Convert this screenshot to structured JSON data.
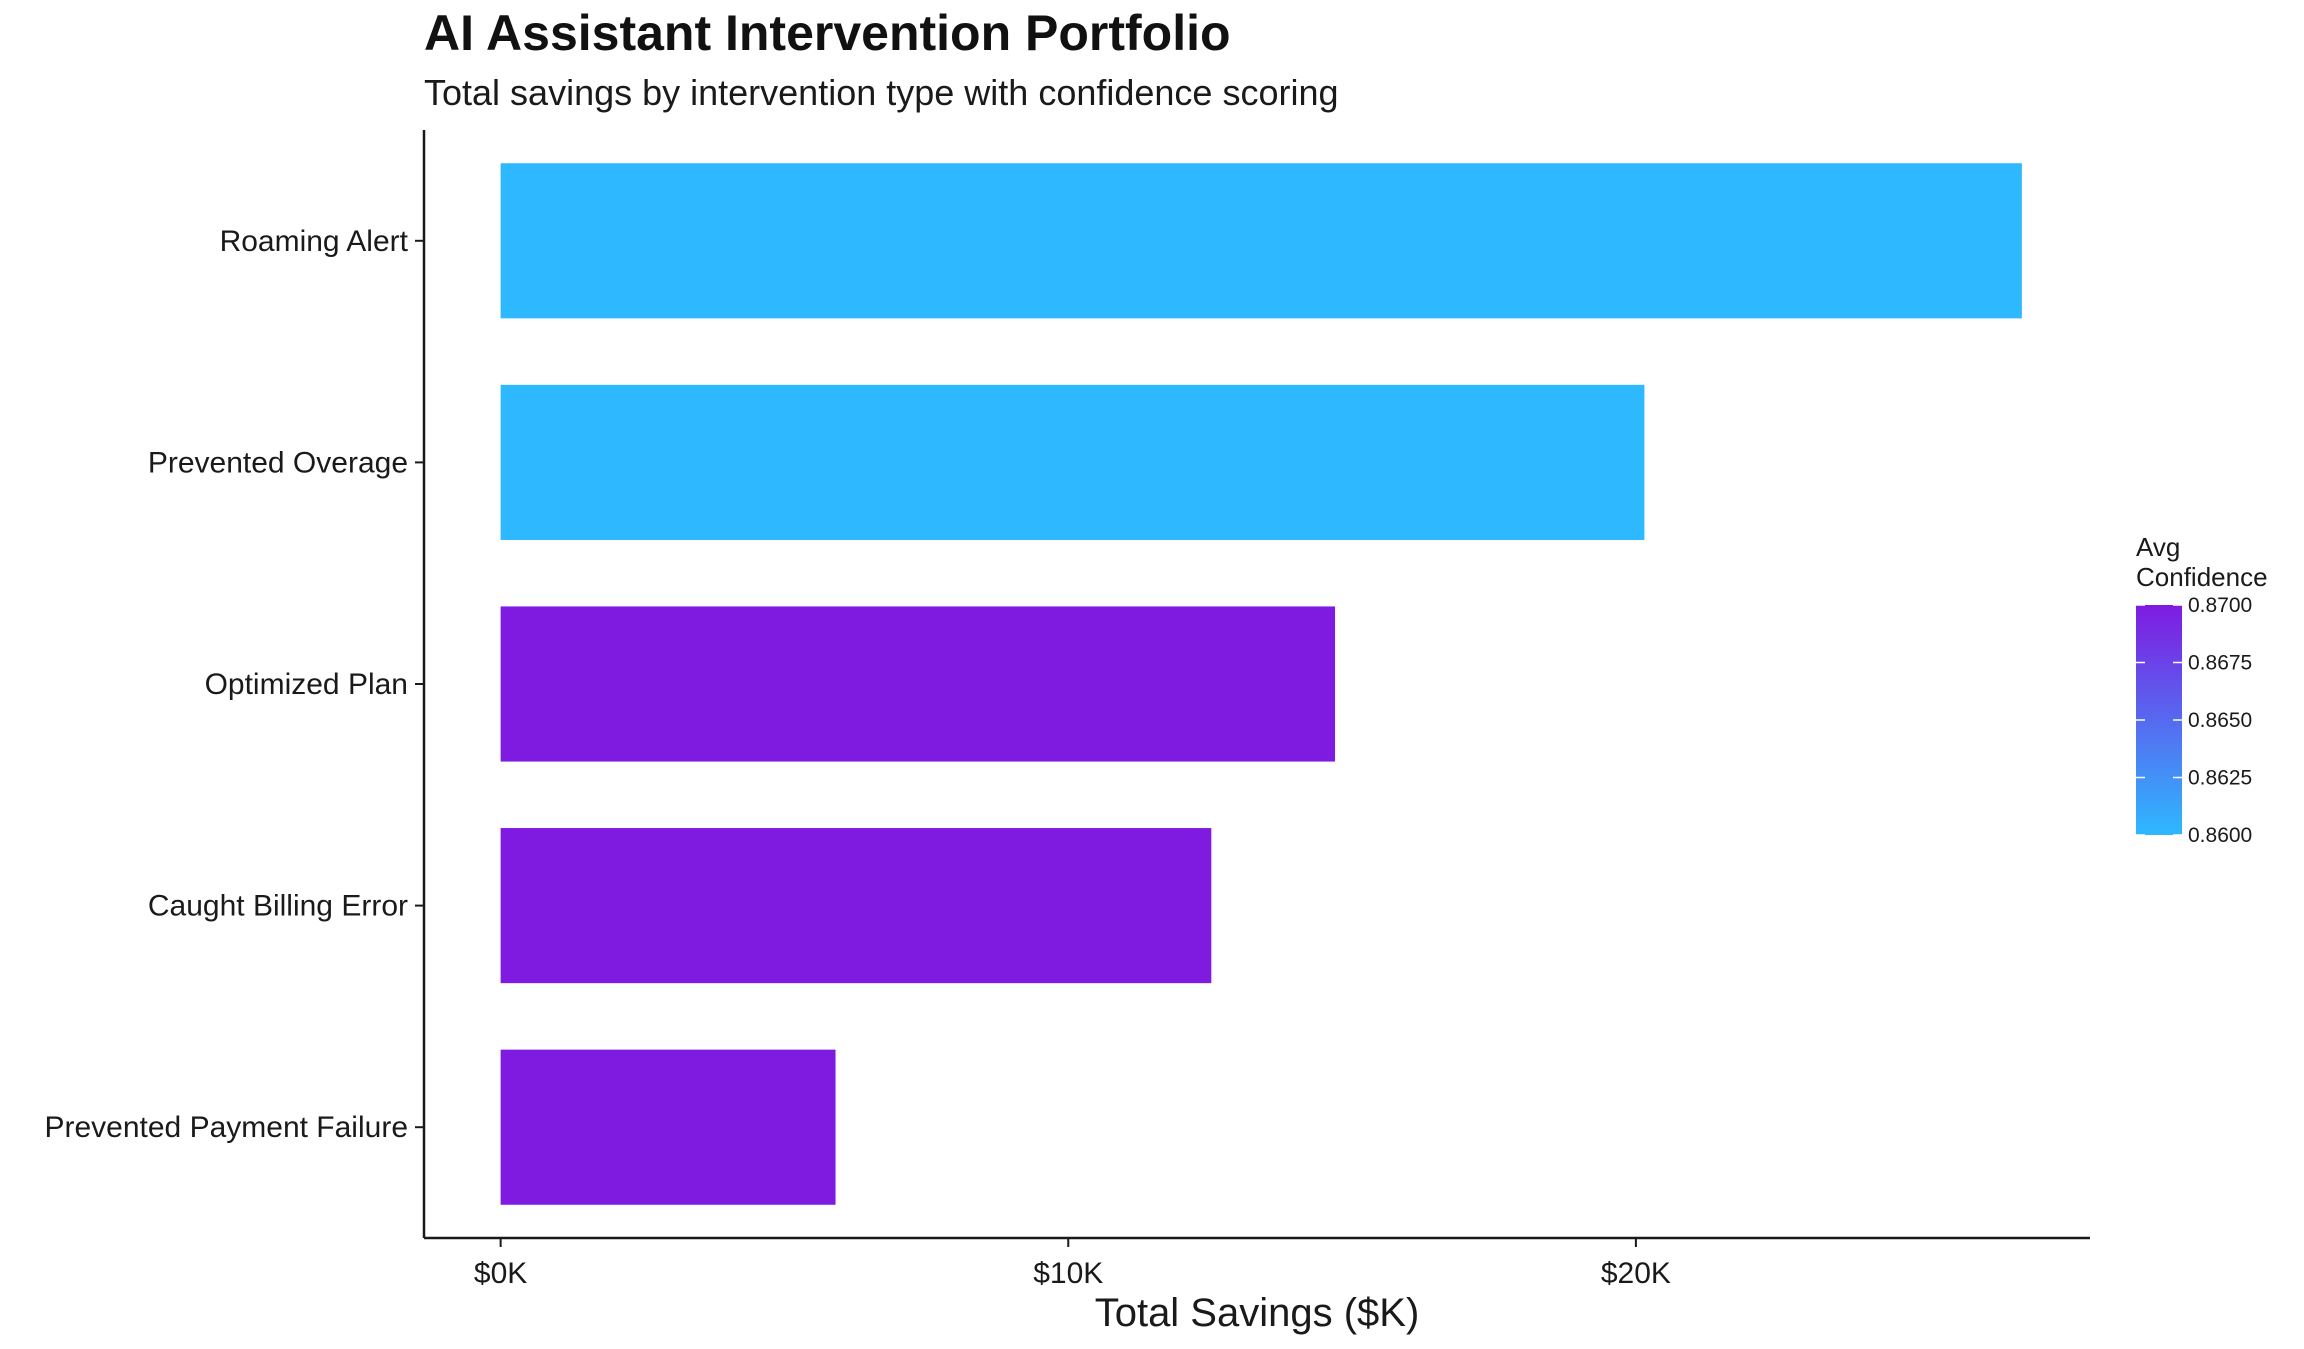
{
  "chart_data": {
    "type": "bar",
    "orientation": "horizontal",
    "title": "AI Assistant Intervention Portfolio",
    "subtitle": "Total savings by intervention type with confidence scoring",
    "xlabel": "Total Savings ($K)",
    "ylabel": "",
    "categories": [
      "Roaming Alert",
      "Prevented Overage",
      "Optimized Plan",
      "Caught Billing Error",
      "Prevented Payment Failure"
    ],
    "values": [
      26800,
      20150,
      14700,
      12520,
      5900
    ],
    "confidence": [
      0.86,
      0.86,
      0.87,
      0.87,
      0.87
    ],
    "xlim": [
      -1350,
      28000
    ],
    "x_ticks": [
      0,
      10000,
      20000
    ],
    "x_tick_labels": [
      "$0K",
      "$10K",
      "$20K"
    ],
    "grid": false,
    "legend": {
      "title_lines": [
        "Avg",
        "Confidence"
      ],
      "placement": "right",
      "min": 0.86,
      "max": 0.87,
      "ticks": [
        0.86,
        0.8625,
        0.865,
        0.8675,
        0.87
      ],
      "tick_labels": [
        "0.8600",
        "0.8625",
        "0.8650",
        "0.8675",
        "0.8700"
      ],
      "low_color": "#2EB8FF",
      "high_color": "#7F1BE0"
    }
  }
}
